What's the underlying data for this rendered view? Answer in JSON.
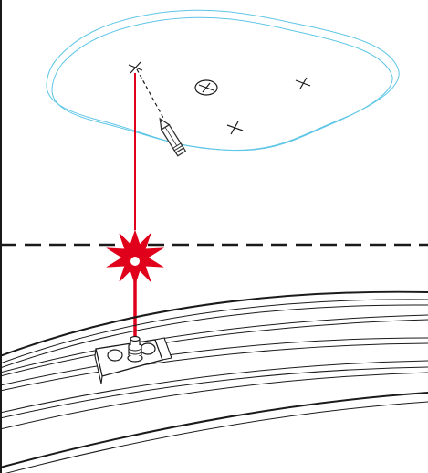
{
  "diagram": {
    "type": "installation-illustration",
    "elements": [
      "ceiling-outline",
      "dashed-boundary-line",
      "laser-beam",
      "laser-burst",
      "pencil",
      "cross-marks",
      "center-mark",
      "curved-track",
      "mounting-bracket"
    ],
    "colors": {
      "outline": "#1a1a1a",
      "ceiling": "#5fc6e6",
      "laser": "#e0001b",
      "pencil": "#333333"
    }
  }
}
